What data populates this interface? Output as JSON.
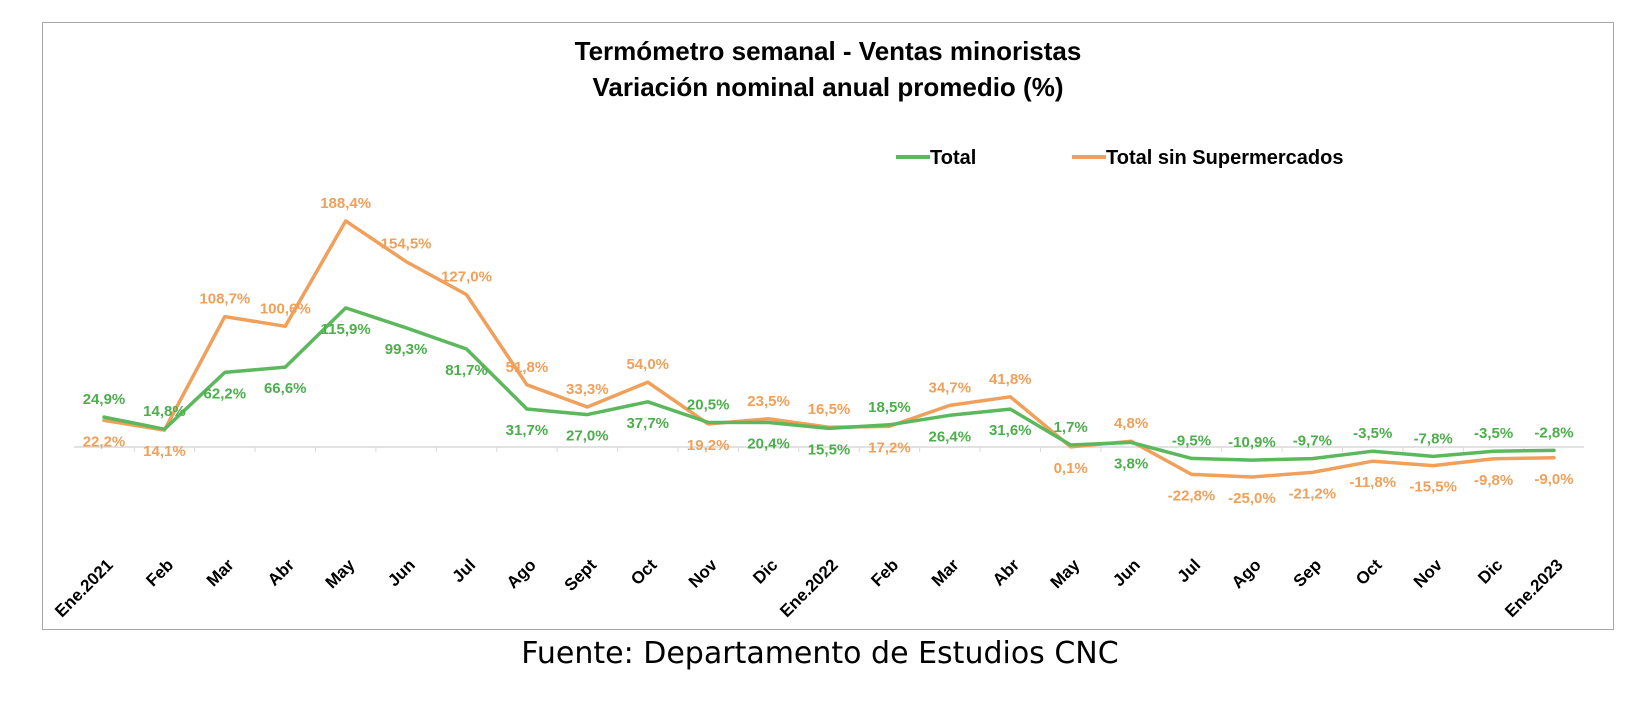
{
  "chart_data": {
    "type": "line",
    "title": [
      "Termómetro semanal - Ventas minoristas",
      "Variación nominal anual promedio (%)"
    ],
    "categories": [
      "Ene.2021",
      "Feb",
      "Mar",
      "Abr",
      "May",
      "Jun",
      "Jul",
      "Ago",
      "Sept",
      "Oct",
      "Nov",
      "Dic",
      "Ene.2022",
      "Feb",
      "Mar",
      "Abr",
      "May",
      "Jun",
      "Jul",
      "Ago",
      "Sep",
      "Oct",
      "Nov",
      "Dic",
      "Ene.2023"
    ],
    "series": [
      {
        "name": "Total",
        "color": "#5cb85c",
        "values": [
          24.9,
          14.8,
          62.2,
          66.6,
          115.9,
          99.3,
          81.7,
          31.7,
          27.0,
          37.7,
          20.5,
          20.4,
          15.5,
          18.5,
          26.4,
          31.6,
          1.7,
          3.8,
          -9.5,
          -10.9,
          -9.7,
          -3.5,
          -7.8,
          -3.5,
          -2.8
        ],
        "labels": [
          "24,9%",
          "14,8%",
          "62,2%",
          "66,6%",
          "115,9%",
          "99,3%",
          "81,7%",
          "31,7%",
          "27,0%",
          "37,7%",
          "20,5%",
          "20,4%",
          "15,5%",
          "18,5%",
          "26,4%",
          "31,6%",
          "1,7%",
          "3,8%",
          "-9,5%",
          "-10,9%",
          "-9,7%",
          "-3,5%",
          "-7,8%",
          "-3,5%",
          "-2,8%"
        ]
      },
      {
        "name": "Total sin Supermercados",
        "color": "#f0a05a",
        "values": [
          22.2,
          14.1,
          108.7,
          100.6,
          188.4,
          154.5,
          127.0,
          51.8,
          33.3,
          54.0,
          19.2,
          23.5,
          16.5,
          17.2,
          34.7,
          41.8,
          0.1,
          4.8,
          -22.8,
          -25.0,
          -21.2,
          -11.8,
          -15.5,
          -9.8,
          -9.0
        ],
        "labels": [
          "22,2%",
          "14,1%",
          "108,7%",
          "100,6%",
          "188,4%",
          "154,5%",
          "127,0%",
          "51,8%",
          "33,3%",
          "54,0%",
          "19,2%",
          "23,5%",
          "16,5%",
          "17,2%",
          "34,7%",
          "41,8%",
          "0,1%",
          "4,8%",
          "-22,8%",
          "-25,0%",
          "-21,2%",
          "-11,8%",
          "-15,5%",
          "-9,8%",
          "-9,0%"
        ]
      }
    ],
    "legend_position": "top-right",
    "grid": false
  },
  "source_note": "Fuente: Departamento de Estudios CNC"
}
